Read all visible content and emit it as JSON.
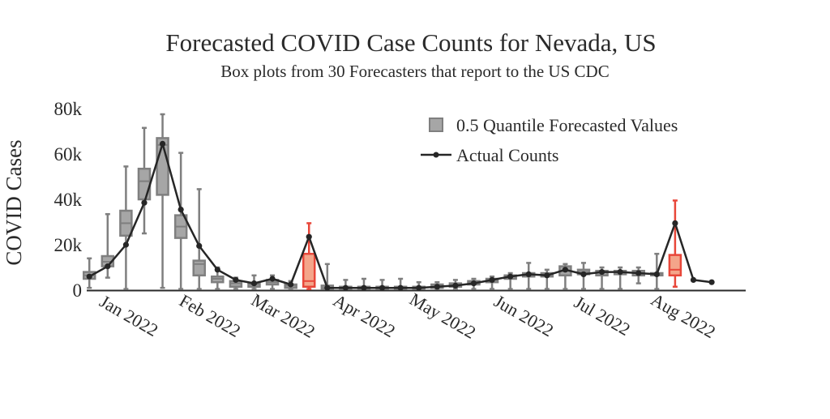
{
  "chart_data": {
    "type": "box",
    "title": "Forecasted COVID Case Counts for Nevada, US",
    "subtitle": "Box plots from 30 Forecasters that report to the US CDC",
    "ylabel": "COVID Cases",
    "xlabel": "",
    "ylim": [
      0,
      80000
    ],
    "yticks": [
      {
        "value": 0,
        "label": "0"
      },
      {
        "value": 20000,
        "label": "20k"
      },
      {
        "value": 40000,
        "label": "40k"
      },
      {
        "value": 60000,
        "label": "60k"
      },
      {
        "value": 80000,
        "label": "80k"
      }
    ],
    "xlim": [
      "2021-12-17",
      "2022-08-26"
    ],
    "xticks": [
      {
        "date": "2022-01-01",
        "label": "Jan 2022"
      },
      {
        "date": "2022-02-01",
        "label": "Feb 2022"
      },
      {
        "date": "2022-03-01",
        "label": "Mar 2022"
      },
      {
        "date": "2022-04-01",
        "label": "Apr 2022"
      },
      {
        "date": "2022-05-01",
        "label": "May 2022"
      },
      {
        "date": "2022-06-01",
        "label": "Jun 2022"
      },
      {
        "date": "2022-07-01",
        "label": "Jul 2022"
      },
      {
        "date": "2022-08-01",
        "label": "Aug 2022"
      }
    ],
    "legend": {
      "placement": "top-right",
      "entries": [
        {
          "label": "0.5 Quantile Forecasted Values",
          "marker": "box"
        },
        {
          "label": "Actual Counts",
          "marker": "line"
        }
      ]
    },
    "colors": {
      "box_fill": "#a6a6a6",
      "box_line": "#7f7f7f",
      "highlight_fill": "#f4a58a",
      "highlight_line": "#e8473a",
      "actual_line": "#262626"
    },
    "series": [
      {
        "name": "0.5 Quantile Forecasted Values",
        "boxes": [
          {
            "date": "2021-12-18",
            "min": 1000,
            "q1": 5000,
            "median": 6500,
            "q3": 8000,
            "max": 14000
          },
          {
            "date": "2021-12-25",
            "min": 5500,
            "q1": 10500,
            "median": 12500,
            "q3": 15000,
            "max": 33500
          },
          {
            "date": "2022-01-01",
            "min": 500,
            "q1": 24000,
            "median": 29500,
            "q3": 35000,
            "max": 54500
          },
          {
            "date": "2022-01-08",
            "min": 25000,
            "q1": 40000,
            "median": 48000,
            "q3": 53500,
            "max": 71500
          },
          {
            "date": "2022-01-15",
            "min": 1000,
            "q1": 42000,
            "median": 64000,
            "q3": 67000,
            "max": 77500
          },
          {
            "date": "2022-01-22",
            "min": 500,
            "q1": 23000,
            "median": 28000,
            "q3": 33000,
            "max": 60500
          },
          {
            "date": "2022-01-29",
            "min": 500,
            "q1": 6500,
            "median": 11500,
            "q3": 13000,
            "max": 44500
          },
          {
            "date": "2022-02-05",
            "min": 500,
            "q1": 3500,
            "median": 5000,
            "q3": 6000,
            "max": 10000
          },
          {
            "date": "2022-02-12",
            "min": 500,
            "q1": 1500,
            "median": 3000,
            "q3": 4000,
            "max": 5500
          },
          {
            "date": "2022-02-19",
            "min": 500,
            "q1": 1500,
            "median": 2500,
            "q3": 3000,
            "max": 6500
          },
          {
            "date": "2022-02-26",
            "min": 500,
            "q1": 2500,
            "median": 3500,
            "q3": 4500,
            "max": 6500
          },
          {
            "date": "2022-03-05",
            "min": 500,
            "q1": 1000,
            "median": 2000,
            "q3": 2500,
            "max": 4000
          },
          {
            "date": "2022-03-12",
            "min": 500,
            "q1": 1500,
            "median": 4000,
            "q3": 16000,
            "max": 29500,
            "highlight": true
          },
          {
            "date": "2022-03-19",
            "min": 500,
            "q1": 500,
            "median": 1000,
            "q3": 2000,
            "max": 11500
          },
          {
            "date": "2022-03-26",
            "min": 500,
            "q1": 500,
            "median": 1000,
            "q3": 1500,
            "max": 4500
          },
          {
            "date": "2022-04-02",
            "min": 500,
            "q1": 500,
            "median": 1000,
            "q3": 1500,
            "max": 5000
          },
          {
            "date": "2022-04-09",
            "min": 500,
            "q1": 500,
            "median": 1000,
            "q3": 1500,
            "max": 4500
          },
          {
            "date": "2022-04-16",
            "min": 500,
            "q1": 500,
            "median": 1000,
            "q3": 1500,
            "max": 5000
          },
          {
            "date": "2022-04-23",
            "min": 500,
            "q1": 500,
            "median": 1000,
            "q3": 1500,
            "max": 3500
          },
          {
            "date": "2022-04-30",
            "min": 500,
            "q1": 1000,
            "median": 1500,
            "q3": 2500,
            "max": 3500
          },
          {
            "date": "2022-05-07",
            "min": 500,
            "q1": 1500,
            "median": 2500,
            "q3": 3000,
            "max": 4500
          },
          {
            "date": "2022-05-14",
            "min": 500,
            "q1": 2500,
            "median": 3500,
            "q3": 4000,
            "max": 5000
          },
          {
            "date": "2022-05-21",
            "min": 500,
            "q1": 3500,
            "median": 4500,
            "q3": 5000,
            "max": 6000
          },
          {
            "date": "2022-05-28",
            "min": 500,
            "q1": 5000,
            "median": 6000,
            "q3": 6500,
            "max": 7500
          },
          {
            "date": "2022-06-04",
            "min": 500,
            "q1": 6000,
            "median": 7000,
            "q3": 7500,
            "max": 12000
          },
          {
            "date": "2022-06-11",
            "min": 500,
            "q1": 6000,
            "median": 7000,
            "q3": 7500,
            "max": 9000
          },
          {
            "date": "2022-06-18",
            "min": 500,
            "q1": 6500,
            "median": 8500,
            "q3": 10500,
            "max": 11500
          },
          {
            "date": "2022-06-25",
            "min": 500,
            "q1": 7000,
            "median": 8000,
            "q3": 9000,
            "max": 12000
          },
          {
            "date": "2022-07-02",
            "min": 500,
            "q1": 6500,
            "median": 8000,
            "q3": 8500,
            "max": 10000
          },
          {
            "date": "2022-07-09",
            "min": 500,
            "q1": 7000,
            "median": 8000,
            "q3": 8500,
            "max": 10000
          },
          {
            "date": "2022-07-16",
            "min": 3000,
            "q1": 6500,
            "median": 7500,
            "q3": 8500,
            "max": 10000
          },
          {
            "date": "2022-07-23",
            "min": 500,
            "q1": 6500,
            "median": 7000,
            "q3": 7500,
            "max": 16000
          },
          {
            "date": "2022-07-30",
            "min": 1500,
            "q1": 6500,
            "median": 9000,
            "q3": 15500,
            "max": 39500,
            "highlight": true
          }
        ]
      },
      {
        "name": "Actual Counts",
        "points": [
          {
            "date": "2021-12-18",
            "value": 6000
          },
          {
            "date": "2021-12-25",
            "value": 10500
          },
          {
            "date": "2022-01-01",
            "value": 20000
          },
          {
            "date": "2022-01-08",
            "value": 38500
          },
          {
            "date": "2022-01-15",
            "value": 64500
          },
          {
            "date": "2022-01-22",
            "value": 35500
          },
          {
            "date": "2022-01-29",
            "value": 19500
          },
          {
            "date": "2022-02-05",
            "value": 9000
          },
          {
            "date": "2022-02-12",
            "value": 4500
          },
          {
            "date": "2022-02-19",
            "value": 3000
          },
          {
            "date": "2022-02-26",
            "value": 5000
          },
          {
            "date": "2022-03-05",
            "value": 2500
          },
          {
            "date": "2022-03-12",
            "value": 23500
          },
          {
            "date": "2022-03-19",
            "value": 1000
          },
          {
            "date": "2022-03-26",
            "value": 1000
          },
          {
            "date": "2022-04-02",
            "value": 1000
          },
          {
            "date": "2022-04-09",
            "value": 1000
          },
          {
            "date": "2022-04-16",
            "value": 1000
          },
          {
            "date": "2022-04-23",
            "value": 1000
          },
          {
            "date": "2022-04-30",
            "value": 1500
          },
          {
            "date": "2022-05-07",
            "value": 2000
          },
          {
            "date": "2022-05-14",
            "value": 3000
          },
          {
            "date": "2022-05-21",
            "value": 4500
          },
          {
            "date": "2022-05-28",
            "value": 6000
          },
          {
            "date": "2022-06-04",
            "value": 7000
          },
          {
            "date": "2022-06-11",
            "value": 6500
          },
          {
            "date": "2022-06-18",
            "value": 9000
          },
          {
            "date": "2022-06-25",
            "value": 7000
          },
          {
            "date": "2022-07-02",
            "value": 8000
          },
          {
            "date": "2022-07-09",
            "value": 8000
          },
          {
            "date": "2022-07-16",
            "value": 7500
          },
          {
            "date": "2022-07-23",
            "value": 7000
          },
          {
            "date": "2022-07-30",
            "value": 29500
          },
          {
            "date": "2022-08-06",
            "value": 4500
          },
          {
            "date": "2022-08-13",
            "value": 3500
          }
        ]
      }
    ]
  }
}
